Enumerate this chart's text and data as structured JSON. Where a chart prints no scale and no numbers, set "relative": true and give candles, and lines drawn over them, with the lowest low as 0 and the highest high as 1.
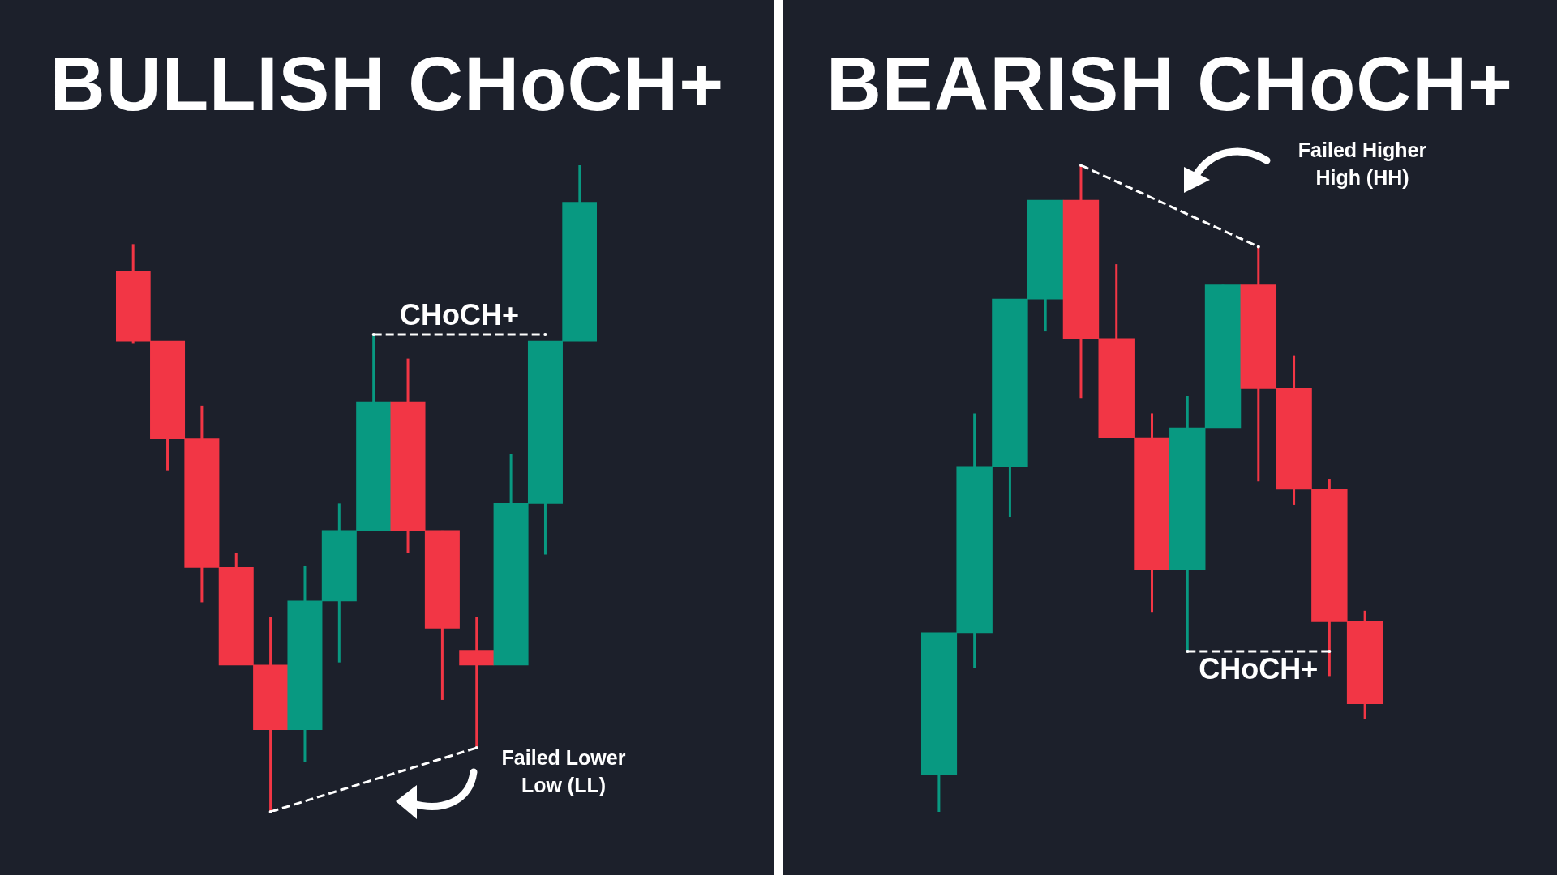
{
  "chart_data": [
    {
      "type": "candlestick",
      "title": "BULLISH CHoCH+",
      "relative": true,
      "categories": [
        null,
        null,
        null,
        null,
        null,
        null,
        null,
        null,
        null,
        null,
        null,
        null,
        null,
        null
      ],
      "ohlc": [
        [
          0.836,
          0.878,
          0.725,
          0.728
        ],
        [
          0.728,
          0.728,
          0.528,
          0.577
        ],
        [
          0.577,
          0.628,
          0.324,
          0.378
        ],
        [
          0.378,
          0.4,
          0.227,
          0.227
        ],
        [
          0.227,
          0.301,
          0,
          0.127
        ],
        [
          0.127,
          0.381,
          0.077,
          0.326
        ],
        [
          0.326,
          0.477,
          0.231,
          0.435
        ],
        [
          0.435,
          0.738,
          0.435,
          0.634
        ],
        [
          0.634,
          0.701,
          0.401,
          0.435
        ],
        [
          0.435,
          0.435,
          0.173,
          0.284
        ],
        [
          0.25,
          0.301,
          0.099,
          0.227
        ],
        [
          0.227,
          0.554,
          0.227,
          0.477
        ],
        [
          0.477,
          0.728,
          0.398,
          0.728
        ],
        [
          0.728,
          1,
          0.728,
          0.943
        ]
      ],
      "colors": [
        "#f23645",
        "#f23645",
        "#f23645",
        "#f23645",
        "#f23645",
        "#089981",
        "#089981",
        "#089981",
        "#f23645",
        "#f23645",
        "#f23645",
        "#089981",
        "#089981",
        "#089981"
      ],
      "series": [
        {
          "type": "line",
          "color": "#ffffff",
          "line_style": "dashed",
          "values": [
            null,
            null,
            null,
            null,
            0,
            null,
            null,
            null,
            null,
            null,
            0.099,
            null,
            null,
            null
          ]
        },
        {
          "type": "line",
          "color": "#ffffff",
          "line_style": "dashed",
          "values": [
            null,
            null,
            null,
            null,
            null,
            null,
            null,
            0.738,
            null,
            null,
            null,
            null,
            0.738,
            null
          ]
        }
      ],
      "annotations": [
        {
          "text": "CHoCH+",
          "y": 0.738
        },
        "Failed Lower Low (LL)"
      ]
    },
    {
      "type": "candlestick",
      "title": "BEARISH CHoCH+",
      "relative": true,
      "categories": [
        null,
        null,
        null,
        null,
        null,
        null,
        null,
        null,
        null,
        null,
        null,
        null,
        null
      ],
      "ohlc": [
        [
          0.058,
          0.277,
          0,
          0.277
        ],
        [
          0.277,
          0.616,
          0.222,
          0.534
        ],
        [
          0.534,
          0.793,
          0.456,
          0.793
        ],
        [
          0.793,
          0.946,
          0.743,
          0.946
        ],
        [
          0.946,
          1,
          0.64,
          0.732
        ],
        [
          0.732,
          0.847,
          0.579,
          0.579
        ],
        [
          0.579,
          0.616,
          0.308,
          0.374
        ],
        [
          0.374,
          0.643,
          0.248,
          0.594
        ],
        [
          0.594,
          0.815,
          0.594,
          0.815
        ],
        [
          0.815,
          0.874,
          0.511,
          0.655
        ],
        [
          0.655,
          0.706,
          0.475,
          0.499
        ],
        [
          0.499,
          0.515,
          0.21,
          0.294
        ],
        [
          0.294,
          0.311,
          0.144,
          0.167
        ]
      ],
      "colors": [
        "#089981",
        "#089981",
        "#089981",
        "#089981",
        "#f23645",
        "#f23645",
        "#f23645",
        "#089981",
        "#089981",
        "#f23645",
        "#f23645",
        "#f23645",
        "#f23645"
      ],
      "series": [
        {
          "type": "line",
          "color": "#ffffff",
          "line_style": "dashed",
          "values": [
            null,
            null,
            null,
            null,
            1,
            null,
            null,
            null,
            null,
            0.874,
            null,
            null,
            null
          ]
        },
        {
          "type": "line",
          "color": "#ffffff",
          "line_style": "dashed",
          "values": [
            null,
            null,
            null,
            null,
            null,
            null,
            null,
            0.248,
            null,
            null,
            null,
            0.248,
            null
          ]
        }
      ],
      "annotations": [
        {
          "text": "CHoCH+",
          "y": 0.248
        },
        "Failed Higher High (HH)"
      ]
    }
  ]
}
